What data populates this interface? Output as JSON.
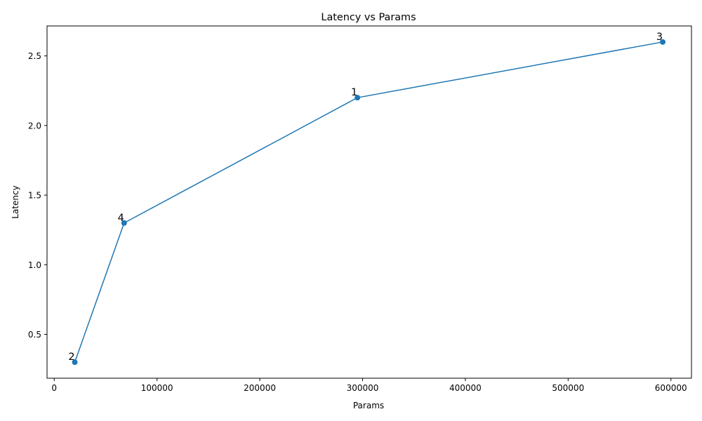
{
  "chart_data": {
    "type": "line",
    "title": "Latency vs Params",
    "xlabel": "Params",
    "ylabel": "Latency",
    "xlim": [
      -7000,
      620000
    ],
    "ylim": [
      0.185,
      2.715
    ],
    "x_ticks": [
      0,
      100000,
      200000,
      300000,
      400000,
      500000,
      600000
    ],
    "x_tick_labels": [
      "0",
      "100000",
      "200000",
      "300000",
      "400000",
      "500000",
      "600000"
    ],
    "y_ticks": [
      0.5,
      1.0,
      1.5,
      2.0,
      2.5
    ],
    "y_tick_labels": [
      "0.5",
      "1.0",
      "1.5",
      "2.0",
      "2.5"
    ],
    "grid": false,
    "legend": "none",
    "series": [
      {
        "color": "#1f77b4",
        "marker": "circle",
        "points": [
          {
            "x": 20000,
            "y": 0.3,
            "label": "2"
          },
          {
            "x": 68000,
            "y": 1.3,
            "label": "4"
          },
          {
            "x": 295000,
            "y": 2.2,
            "label": "1"
          },
          {
            "x": 592000,
            "y": 2.6,
            "label": "3"
          }
        ]
      }
    ]
  }
}
